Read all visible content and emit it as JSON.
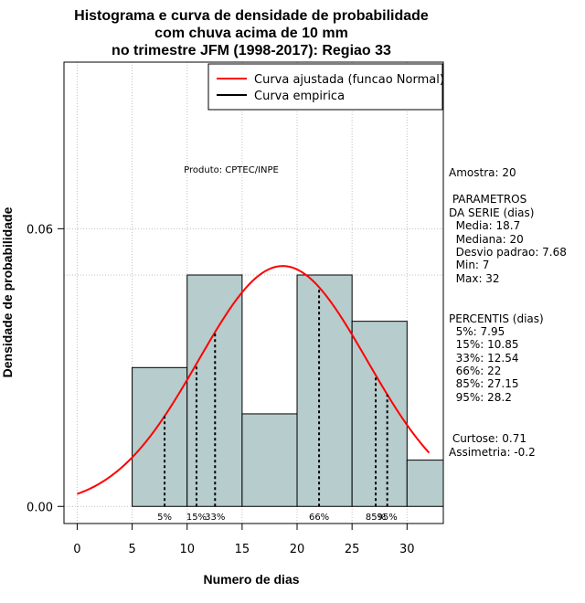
{
  "chart_data": {
    "type": "bar",
    "title_lines": [
      "Histograma e curva de densidade de probabilidade",
      "com chuva acima de 10 mm",
      "no trimestre JFM (1998-2017): Regiao 33"
    ],
    "xlabel": "Numero de dias",
    "ylabel": "Densidade de probabilidade",
    "xlim": [
      -1.2,
      33.3
    ],
    "ylim": [
      -0.0037,
      0.096
    ],
    "x_ticks": [
      "0",
      "5",
      "10",
      "15",
      "20",
      "25",
      "30"
    ],
    "y_ticks": [
      "0.00",
      "0.06"
    ],
    "grid_x": [
      0,
      5,
      10,
      15,
      20,
      25,
      30
    ],
    "grid_y": [
      0,
      0.06
    ],
    "bins": [
      {
        "from": 5,
        "to": 10,
        "density": 0.03
      },
      {
        "from": 10,
        "to": 15,
        "density": 0.05
      },
      {
        "from": 15,
        "to": 20,
        "density": 0.02
      },
      {
        "from": 20,
        "to": 25,
        "density": 0.05
      },
      {
        "from": 25,
        "to": 30,
        "density": 0.04
      },
      {
        "from": 30,
        "to": 33.3,
        "density": 0.01
      }
    ],
    "normal_fit": {
      "mean": 18.7,
      "sd": 7.68,
      "from": 0,
      "to": 32
    },
    "percentiles": [
      {
        "label": "5%",
        "value": 7.95
      },
      {
        "label": "15%",
        "value": 10.85
      },
      {
        "label": "33%",
        "value": 12.54
      },
      {
        "label": "66%",
        "value": 22
      },
      {
        "label": "85%",
        "value": 27.15
      },
      {
        "label": "95%",
        "value": 28.2
      }
    ],
    "legend": {
      "position": "top-right",
      "entries": [
        {
          "label": "Curva ajustada (funcao Normal)",
          "color": "#ff0000"
        },
        {
          "label": "Curva empirica",
          "color": "#000000"
        }
      ]
    },
    "product_note": "Produto: CPTEC/INPE",
    "side_text": [
      "Amostra: 20",
      " PARAMETROS",
      "DA SERIE (dias)",
      "  Media: 18.7",
      "  Mediana: 20",
      "  Desvio padrao: 7.68",
      "  Min: 7",
      "  Max: 32",
      "PERCENTIS (dias)",
      "  5%: 7.95",
      "  15%: 10.85",
      "  33%: 12.54",
      "  66%: 22",
      "  85%: 27.15",
      "  95%: 28.2",
      " Curtose: 0.71",
      "Assimetria: -0.2"
    ],
    "colors": {
      "bar_fill": "#b7cccc",
      "curve": "#ff0000",
      "grid": "#c0c0c0",
      "axis": "#000000"
    }
  }
}
